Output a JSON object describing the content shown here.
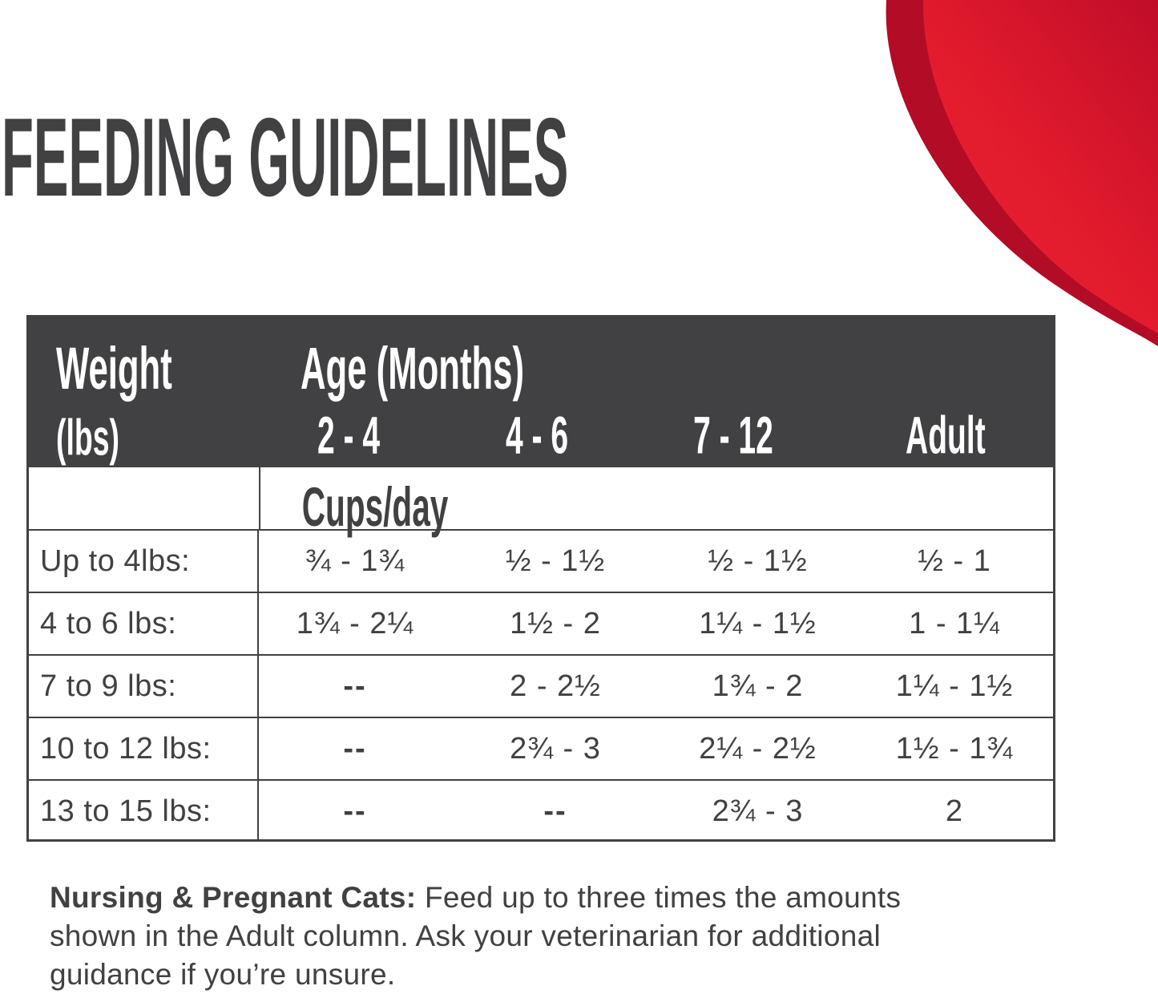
{
  "title": "FEEDING GUIDELINES",
  "colors": {
    "accent_red": "#e61a2d",
    "accent_red_dark": "#b30c26",
    "header_bg": "#414042",
    "text_dark": "#414042"
  },
  "table": {
    "header": {
      "weight_label": "Weight",
      "weight_unit": "(lbs)",
      "age_label": "Age (Months)",
      "age_columns": [
        "2 - 4",
        "4 - 6",
        "7 - 12",
        "Adult"
      ]
    },
    "unit_label": "Cups/day",
    "rows": [
      {
        "weight": "Up to 4lbs:",
        "values": [
          "¾ - 1¾",
          "½ - 1½",
          "½ - 1½",
          "½ - 1"
        ]
      },
      {
        "weight": "4 to 6 lbs:",
        "values": [
          "1¾ - 2¼",
          "1½ - 2",
          "1¼ - 1½",
          "1 - 1¼"
        ]
      },
      {
        "weight": "7 to 9 lbs:",
        "values": [
          "--",
          "2 - 2½",
          "1¾ - 2",
          "1¼ - 1½"
        ]
      },
      {
        "weight": "10 to 12 lbs:",
        "values": [
          "--",
          "2¾ - 3",
          "2¼ - 2½",
          "1½ - 1¾"
        ]
      },
      {
        "weight": "13 to 15 lbs:",
        "values": [
          "--",
          "--",
          "2¾ - 3",
          "2"
        ]
      }
    ]
  },
  "note": {
    "bold": "Nursing & Pregnant Cats:",
    "line1_rest": " Feed up to three times the amounts",
    "line2": "shown in the Adult column. Ask your veterinarian for additional",
    "line3": "guidance if you’re unsure."
  }
}
